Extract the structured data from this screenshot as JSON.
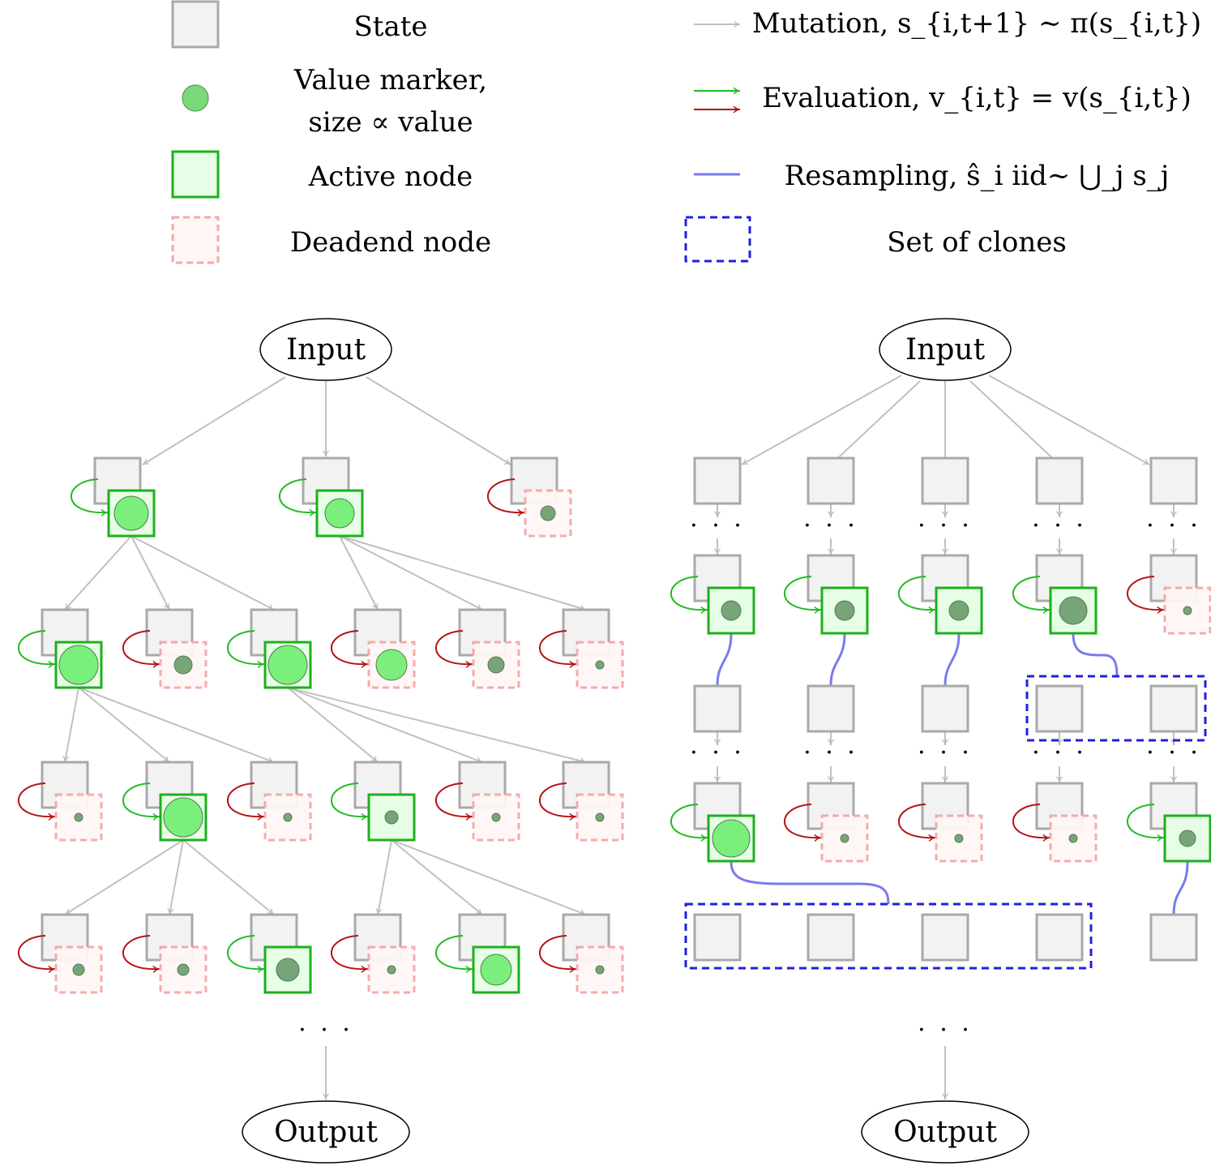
{
  "legend": {
    "state": "State",
    "value_marker": "Value marker,",
    "value_marker_2": "size ∝ value",
    "active_node": "Active node",
    "deadend_node": "Deadend node",
    "mutation": "Mutation, s_{i,t+1} ∼ π(s_{i,t})",
    "evaluation": "Evaluation, v_{i,t} = v(s_{i,t})",
    "resampling": "Resampling, ŝ_i iid∼ ⋃_j s_j",
    "set_of_clones": "Set of clones"
  },
  "left": {
    "input": "Input",
    "output": "Output",
    "ellipsis": "· · ·"
  },
  "right": {
    "input": "Input",
    "output": "Output",
    "ellipsis": "· · ·"
  },
  "colors": {
    "state_fill": "#f2f2f2",
    "state_stroke": "#a9a9a9",
    "active_fill": "#e6fde6",
    "active_stroke": "#1db01d",
    "dead_fill": "#fff6f6",
    "dead_stroke": "#f4a8a8",
    "marker_bright": "#70ee70",
    "marker_dark": "#6b9c6b",
    "mutation": "#c0c0c0",
    "eval_good": "#21bb21",
    "eval_bad": "#b41414",
    "resample": "#7a7aee",
    "clone_box": "#2020dd"
  }
}
